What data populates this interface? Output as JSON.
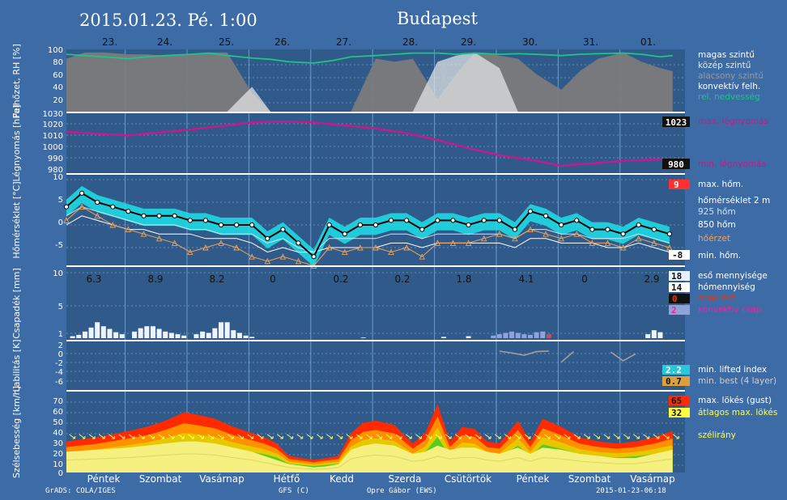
{
  "header": {
    "datetime": "2015.01.23. Pé. 1:00",
    "location": "Budapest"
  },
  "top_dates": [
    "23.",
    "24.",
    "25.",
    "26.",
    "27.",
    "28.",
    "29.",
    "30.",
    "31.",
    "01."
  ],
  "bottom_days": [
    "Péntek",
    "Szombat",
    "Vasárnap",
    "Hétfő",
    "Kedd",
    "Szerda",
    "Csütörtök",
    "Péntek",
    "Szombat",
    "Vasárnap"
  ],
  "footer": {
    "left": "GrADS: COLA/IGES",
    "model": "GFS (C)",
    "author": "Opre Gábor (EWS)",
    "stamp": "2015-01-23-06:18"
  },
  "colors": {
    "background": "#3d6ba5",
    "rh": "#1fc486",
    "pressure": "#c21b8c",
    "temp_band": "#1de0e6",
    "temp_925": "#cfe3f5",
    "temp_850": "#ffffff",
    "feels": "#f0a35a",
    "rain": "#e6f0ff",
    "convective": "#8fa3d8",
    "lifted": "#28c8d8",
    "best": "#d9a040",
    "gust": "#ff2a00",
    "avg_gust": "#ffff40"
  },
  "panels": {
    "cloud": {
      "ylabel": "Felhőzet, RH [%]",
      "ticks": [
        "100",
        "80",
        "60",
        "40",
        "20"
      ],
      "legend": [
        {
          "label": "magas szintű",
          "color": "#ffffff"
        },
        {
          "label": "közép szintű",
          "color": "#e8e8e8"
        },
        {
          "label": "alacsony szintű",
          "color": "#9a9a9a"
        },
        {
          "label": "konvektív felh.",
          "color": "#ffffff"
        },
        {
          "label": "rel. nedvesség",
          "color": "#1fc486"
        }
      ]
    },
    "pressure": {
      "ylabel": "Légnyomás [hPa]",
      "ticks": [
        "1030",
        "1020",
        "1010",
        "1000",
        "990",
        "980"
      ],
      "legend_max": "max. légnyomás",
      "legend_min": "min. légnyomás",
      "max_value": "1023",
      "min_value": "980"
    },
    "temperature": {
      "ylabel": "Hőmérséklet [°C]",
      "ticks": [
        "10",
        "5",
        "0",
        "-5"
      ],
      "legend_max": "max. hőm.",
      "legend_t2m": "hőmérséklet 2 m",
      "legend_925": "925 hőm",
      "legend_850": "850 hőm",
      "legend_feels": "hőérzet",
      "legend_min": "min. hőm.",
      "max_value": "9",
      "min_value": "-8"
    },
    "precip": {
      "ylabel": "Csapadék [mm]",
      "ticks": [
        "10",
        "5",
        "1"
      ],
      "daily_totals": [
        "6.3",
        "8.9",
        "8.2",
        "0",
        "0.2",
        "0.2",
        "1.8",
        "4.1",
        "0",
        "2.9"
      ],
      "legend": [
        {
          "label": "eső mennyisége",
          "value": "18",
          "color": "#e6f0ff",
          "text_color": "#ffffff"
        },
        {
          "label": "hómennyiség",
          "value": "14",
          "color": "#ffffff",
          "text_color": "#ffffff"
        },
        {
          "label": "ónos eső",
          "value": "0",
          "color": "#ff2a00",
          "text_color": "#ff2a00"
        },
        {
          "label": "konvektív csap.",
          "value": "2",
          "color": "#8fa3d8",
          "text_color": "#ff1aa0"
        }
      ]
    },
    "stability": {
      "ylabel": "Labilitás [K]",
      "ticks": [
        "2",
        "0",
        "-2",
        "-4",
        "-6"
      ],
      "legend_lifted": "min. lifted index",
      "legend_best": "min. best (4 layer)",
      "lifted_value": "2.2",
      "best_value": "0.7"
    },
    "wind": {
      "ylabel": "Szélsebesség [km/h]",
      "ticks": [
        "70",
        "60",
        "50",
        "40",
        "30",
        "20",
        "10",
        "0"
      ],
      "legend_gust": "max. lökés (gust)",
      "legend_avg": "átlagos max. lökés",
      "legend_dir": "szélirány",
      "gust_value": "65",
      "avg_value": "32"
    }
  },
  "chart_data": [
    {
      "type": "area",
      "title": "Felhőzet, RH",
      "x_days": [
        0,
        0.3,
        0.6,
        1,
        1.3,
        1.6,
        2,
        2.3,
        2.6,
        3,
        3.3,
        3.6,
        4,
        4.3,
        4.6,
        5,
        5.3,
        5.6,
        6,
        6.3,
        6.6,
        7,
        7.3,
        7.6,
        8,
        8.3,
        8.6,
        9,
        9.3,
        9.6,
        9.8
      ],
      "series": [
        {
          "name": "alacsony szintű",
          "values": [
            85,
            95,
            95,
            92,
            92,
            90,
            92,
            95,
            95,
            30,
            0,
            0,
            0,
            0,
            0,
            85,
            80,
            85,
            20,
            60,
            95,
            90,
            85,
            60,
            35,
            65,
            85,
            95,
            80,
            70,
            65
          ]
        },
        {
          "name": "konvektív felh.",
          "values": [
            0,
            0,
            0,
            0,
            0,
            0,
            0,
            0,
            0,
            40,
            0,
            0,
            0,
            0,
            0,
            0,
            0,
            0,
            80,
            90,
            95,
            70,
            0,
            0,
            0,
            0,
            0,
            0,
            0,
            0,
            0
          ]
        },
        {
          "name": "rel. nedvesség",
          "values": [
            92,
            90,
            88,
            85,
            88,
            90,
            92,
            94,
            90,
            86,
            84,
            80,
            78,
            82,
            88,
            90,
            92,
            94,
            94,
            92,
            94,
            92,
            93,
            92,
            90,
            92,
            93,
            94,
            92,
            88,
            90
          ]
        }
      ],
      "ylim": [
        0,
        100
      ]
    },
    {
      "type": "line",
      "title": "Légnyomás",
      "x_days": [
        0,
        1,
        2,
        3,
        3.5,
        4,
        5,
        5.5,
        6,
        6.5,
        7,
        7.5,
        8,
        8.5,
        9,
        9.8
      ],
      "series": [
        {
          "name": "max. légnyomás",
          "values": [
            1014,
            1011,
            1016,
            1022,
            1023,
            1022,
            1017,
            1013,
            1007,
            1000,
            994,
            990,
            985,
            987,
            989,
            991
          ]
        }
      ],
      "ylim": [
        980,
        1030
      ]
    },
    {
      "type": "line",
      "title": "Hőmérséklet",
      "x_days": [
        0,
        0.25,
        0.5,
        0.75,
        1,
        1.25,
        1.5,
        1.75,
        2,
        2.25,
        2.5,
        2.75,
        3,
        3.25,
        3.5,
        3.75,
        4,
        4.25,
        4.5,
        4.75,
        5,
        5.25,
        5.5,
        5.75,
        6,
        6.25,
        6.5,
        6.75,
        7,
        7.25,
        7.5,
        7.75,
        8,
        8.25,
        8.5,
        8.75,
        9,
        9.25,
        9.5,
        9.75
      ],
      "series": [
        {
          "name": "hőmérséklet 2 m",
          "values": [
            4,
            7,
            5,
            4,
            3,
            2,
            2,
            2,
            1,
            1,
            0,
            0,
            0,
            -3,
            -1,
            -4,
            -7,
            0,
            -2,
            0,
            0,
            1,
            1,
            -1,
            1,
            1,
            0,
            1,
            1,
            -1,
            3,
            2,
            0,
            1,
            -1,
            -1,
            -2,
            0,
            -1,
            -2
          ]
        },
        {
          "name": "925 hőm",
          "values": [
            2,
            4,
            3,
            2,
            1,
            0,
            0,
            0,
            -1,
            -1,
            -2,
            -2,
            -2,
            -4,
            -3,
            -5,
            -6,
            -3,
            -3,
            -3,
            -3,
            -2,
            -2,
            -3,
            -2,
            -2,
            -2,
            -2,
            -2,
            -3,
            -1,
            -1,
            -2,
            -2,
            -3,
            -3,
            -3,
            -2,
            -3,
            -4
          ]
        },
        {
          "name": "850 hőm",
          "values": [
            0,
            2,
            1,
            0,
            -1,
            -1,
            -2,
            -2,
            -2,
            -3,
            -3,
            -3,
            -4,
            -6,
            -5,
            -6,
            -6,
            -5,
            -5,
            -5,
            -5,
            -4,
            -4,
            -5,
            -4,
            -4,
            -4,
            -4,
            -4,
            -5,
            -3,
            -3,
            -4,
            -4,
            -4,
            -5,
            -5,
            -4,
            -5,
            -6
          ]
        },
        {
          "name": "hőérzet",
          "values": [
            1,
            4,
            2,
            0,
            -1,
            -2,
            -3,
            -4,
            -6,
            -5,
            -4,
            -5,
            -7,
            -8,
            -7,
            -8,
            -9,
            -5,
            -6,
            -5,
            -5,
            -6,
            -5,
            -7,
            -4,
            -4,
            -4,
            -3,
            -2,
            -3,
            -1,
            -2,
            -3,
            -2,
            -4,
            -4,
            -5,
            -3,
            -4,
            -5
          ]
        }
      ],
      "ylim": [
        -10,
        10
      ]
    },
    {
      "type": "bar",
      "title": "Csapadék",
      "x_days": [
        0.1,
        0.2,
        0.3,
        0.4,
        0.5,
        0.6,
        0.7,
        0.8,
        0.9,
        1.1,
        1.2,
        1.3,
        1.4,
        1.5,
        1.6,
        1.7,
        1.8,
        1.9,
        2.1,
        2.2,
        2.3,
        2.4,
        2.5,
        2.6,
        2.7,
        2.8,
        2.9,
        3.0,
        4.8,
        6.1,
        6.5,
        6.9,
        7.0,
        7.1,
        7.2,
        7.3,
        7.4,
        7.5,
        7.6,
        7.7,
        7.8,
        9.4,
        9.5,
        9.6
      ],
      "series": [
        {
          "name": "eső mennyisége",
          "values": [
            0.3,
            0.5,
            1.0,
            1.6,
            2.4,
            1.8,
            1.4,
            0.9,
            0.6,
            1.0,
            1.5,
            1.8,
            1.8,
            1.4,
            1.0,
            0.8,
            0.6,
            0.4,
            0.6,
            1.0,
            0.8,
            1.5,
            2.4,
            2.4,
            1.2,
            0.8,
            0.4,
            0.2,
            0.1,
            0.2,
            0.3,
            0.4,
            0.6,
            0.8,
            1.0,
            0.8,
            0.6,
            0.5,
            0.9,
            1.0,
            0.6,
            0.6,
            1.2,
            0.9
          ]
        }
      ],
      "ylim": [
        0,
        10
      ]
    },
    {
      "type": "line",
      "title": "Labilitás",
      "x_days": [
        7.0,
        7.2,
        7.4,
        7.6,
        7.8,
        8.0,
        8.2,
        8.8,
        9.0,
        9.2
      ],
      "series": [
        {
          "name": "min. lifted index",
          "values": [
            0.6,
            0.2,
            -0.3,
            0.5,
            0.6,
            -1.8,
            0.5,
            0.4,
            -1.5,
            0.0
          ]
        }
      ],
      "ylim": [
        -7,
        3
      ]
    },
    {
      "type": "area",
      "title": "Szélsebesség",
      "x_days": [
        0,
        0.5,
        1,
        1.3,
        1.6,
        1.9,
        2.1,
        2.4,
        2.7,
        3.0,
        3.2,
        3.4,
        3.6,
        4.0,
        4.2,
        4.4,
        4.6,
        4.8,
        5.0,
        5.3,
        5.6,
        5.8,
        6.0,
        6.2,
        6.4,
        6.6,
        6.8,
        7.0,
        7.3,
        7.5,
        7.7,
        8.0,
        8.3,
        8.6,
        8.9,
        9.2,
        9.5,
        9.8
      ],
      "series": [
        {
          "name": "max. lökés (gust)",
          "values": [
            30,
            34,
            40,
            44,
            50,
            58,
            56,
            52,
            44,
            38,
            34,
            28,
            16,
            12,
            14,
            16,
            38,
            48,
            50,
            46,
            28,
            38,
            66,
            30,
            44,
            42,
            30,
            28,
            50,
            30,
            52,
            44,
            34,
            30,
            28,
            30,
            34,
            40
          ]
        },
        {
          "name": "átlagos max. lökés",
          "values": [
            20,
            22,
            24,
            26,
            28,
            30,
            30,
            28,
            24,
            20,
            16,
            12,
            8,
            5,
            6,
            8,
            22,
            26,
            28,
            26,
            18,
            20,
            26,
            22,
            24,
            24,
            20,
            18,
            24,
            18,
            24,
            22,
            18,
            16,
            14,
            14,
            18,
            22
          ]
        }
      ],
      "ylim": [
        0,
        75
      ]
    }
  ]
}
